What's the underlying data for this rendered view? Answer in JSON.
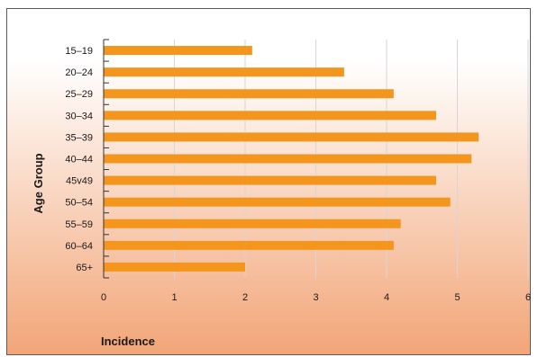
{
  "chart_data": {
    "type": "bar",
    "orientation": "horizontal",
    "categories": [
      "15–19",
      "20–24",
      "25–29",
      "30–34",
      "35–39",
      "40–44",
      "45v49",
      "50–54",
      "55–59",
      "60–64",
      "65+"
    ],
    "values": [
      2.1,
      3.4,
      4.1,
      4.7,
      5.3,
      5.2,
      4.7,
      4.9,
      4.2,
      4.1,
      2.0
    ],
    "xlabel": "Incidence",
    "ylabel": "Age Group",
    "xlim": [
      0,
      6
    ],
    "xticks": [
      0,
      1,
      2,
      3,
      4,
      5,
      6
    ],
    "grid": "vertical",
    "legend": "none"
  },
  "colors": {
    "bar": "#f4951e",
    "gradient_top": "#ffffff",
    "gradient_bottom": "#f2a577",
    "grid": "#d6d6d6",
    "axis": "#333333",
    "text": "#1a1a1a"
  }
}
